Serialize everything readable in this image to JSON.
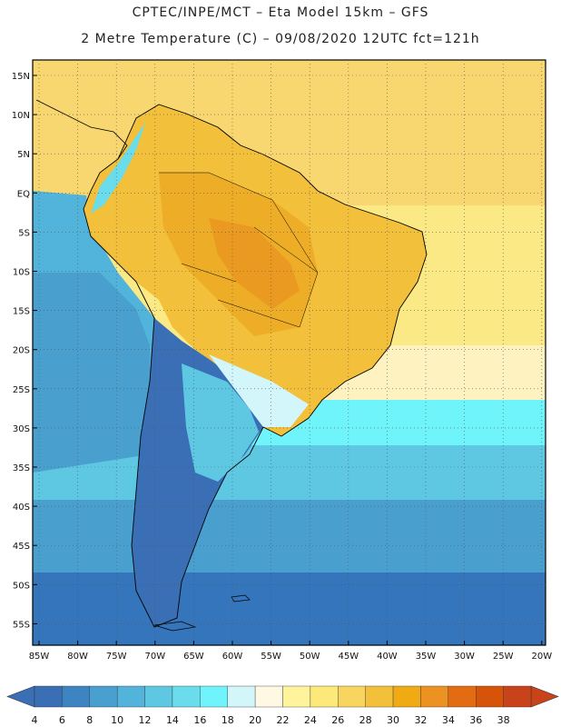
{
  "header": {
    "line1": "CPTEC/INPE/MCT –  Eta Model 15km – GFS",
    "line2": "2 Metre Temperature (C) – 09/08/2020 12UTC fct=121h"
  },
  "axes": {
    "lat_labels": [
      "15N",
      "10N",
      "5N",
      "EQ",
      "5S",
      "10S",
      "15S",
      "20S",
      "25S",
      "30S",
      "35S",
      "40S",
      "45S",
      "50S",
      "55S"
    ],
    "lon_labels": [
      "85W",
      "80W",
      "75W",
      "70W",
      "65W",
      "60W",
      "55W",
      "50W",
      "45W",
      "40W",
      "35W",
      "30W",
      "25W",
      "20W"
    ]
  },
  "colorbar": {
    "labels": [
      "4",
      "6",
      "8",
      "10",
      "12",
      "14",
      "16",
      "18",
      "20",
      "22",
      "24",
      "26",
      "28",
      "30",
      "32",
      "34",
      "36",
      "38"
    ],
    "colors": [
      "#3a6fb5",
      "#3f84c2",
      "#49a0cf",
      "#52b4da",
      "#5ec8e2",
      "#6adcec",
      "#6ff4fb",
      "#d3f6fb",
      "#fff9e4",
      "#fff49c",
      "#fde87a",
      "#f8d55e",
      "#f2c03b",
      "#f0aa14",
      "#ec9223",
      "#e36c12",
      "#d5540a",
      "#c8421a"
    ]
  },
  "legend_colors": {
    "ocean_far": "#2c64ad",
    "ocean_south": "#3575bb",
    "land_north": "#f1b43e"
  }
}
